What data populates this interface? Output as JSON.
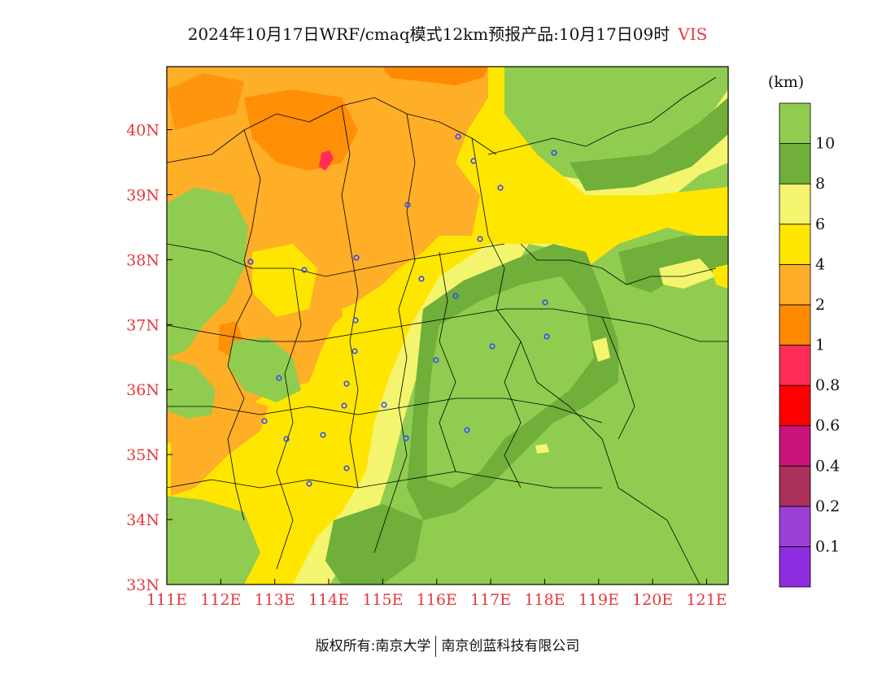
{
  "title": {
    "main": "2024年10月17日WRF/cmaq模式12km预报产品:10月17日09时",
    "variable": "VIS"
  },
  "footer": {
    "left": "版权所有:南京大学",
    "right": "南京创蓝科技有限公司"
  },
  "map": {
    "lon_range": [
      111,
      121.4
    ],
    "lat_range": [
      33,
      40.97
    ],
    "lon_ticks": [
      "111E",
      "112E",
      "113E",
      "114E",
      "115E",
      "116E",
      "117E",
      "118E",
      "119E",
      "120E",
      "121E"
    ],
    "lat_ticks": [
      "33N",
      "34N",
      "35N",
      "36N",
      "37N",
      "38N",
      "39N",
      "40N"
    ],
    "tick_label_color": "#e8363c"
  },
  "legend": {
    "unit": "(km)",
    "colors": [
      "#8e2de0",
      "#9b3fd6",
      "#aa2f5a",
      "#c8137b",
      "#ff0000",
      "#ff2d57",
      "#ff8a00",
      "#ffae28",
      "#ffe600",
      "#f3f56e",
      "#6faf3a",
      "#90cc50"
    ],
    "labels": [
      "0.1",
      "0.2",
      "0.4",
      "0.6",
      "0.8",
      "1",
      "2",
      "4",
      "6",
      "8",
      "10"
    ]
  },
  "station_color": "#3048ff"
}
